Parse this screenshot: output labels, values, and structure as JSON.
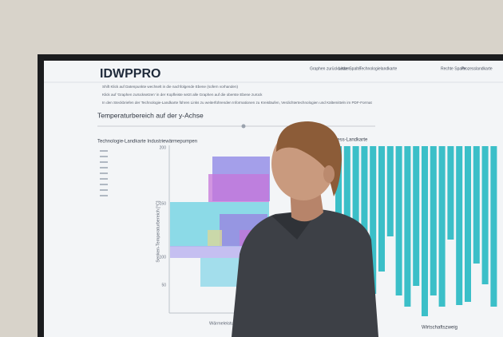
{
  "header": {
    "title": "IDWPPRO",
    "nav": [
      "Graphen zurücksetzen",
      "Linke Spalte",
      "Technologielandkarte",
      "Rechte Spalte",
      "Prozesslandkarte"
    ]
  },
  "instructions": [
    "Shift Klick auf Datenpunkte wechselt in die nachfolgende Ebene (sofern vorhanden)",
    "Klick auf 'Graphen zurücksetzen' in der Kopfleiste setzt alle Graphen auf die oberste Ebene zurück",
    "In den Steckbriefen der Technologie-Landkarte führen Links zu weiterführenden Informationen zu Kreisläufen, Verdichtertechnologien und Kältemitteln im PDF-Format"
  ],
  "section_title": "Temperaturbereich auf der y-Achse",
  "left_chart": {
    "title": "Technologie-Landkarte Industriewärmepumpen",
    "y_axis_label": "Senken-Temperaturbereich [°C]",
    "y_ticks": [
      "200",
      "150",
      "100",
      "50"
    ],
    "x_axis_label": "Wärmeleistung"
  },
  "right_chart": {
    "title": "Prozess-Landkarte",
    "x_axis_label": "Wirtschaftszweig"
  }
}
